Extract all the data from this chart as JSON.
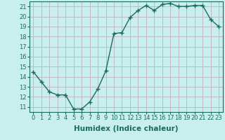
{
  "x": [
    0,
    1,
    2,
    3,
    4,
    5,
    6,
    7,
    8,
    9,
    10,
    11,
    12,
    13,
    14,
    15,
    16,
    17,
    18,
    19,
    20,
    21,
    22,
    23
  ],
  "y": [
    14.5,
    13.5,
    12.5,
    12.2,
    12.2,
    10.8,
    10.8,
    11.5,
    12.8,
    14.6,
    18.3,
    18.4,
    19.9,
    20.6,
    21.1,
    20.6,
    21.2,
    21.3,
    21.0,
    21.0,
    21.1,
    21.1,
    19.7,
    19.0
  ],
  "xlabel": "Humidex (Indice chaleur)",
  "xlim": [
    -0.5,
    23.5
  ],
  "ylim": [
    10.5,
    21.5
  ],
  "yticks": [
    11,
    12,
    13,
    14,
    15,
    16,
    17,
    18,
    19,
    20,
    21
  ],
  "xticks": [
    0,
    1,
    2,
    3,
    4,
    5,
    6,
    7,
    8,
    9,
    10,
    11,
    12,
    13,
    14,
    15,
    16,
    17,
    18,
    19,
    20,
    21,
    22,
    23
  ],
  "line_color": "#1a6b5e",
  "marker": "+",
  "marker_size": 4,
  "bg_color": "#c8eeee",
  "grid_color": "#c0b8c8",
  "tick_label_fontsize": 6,
  "xlabel_fontsize": 7.5,
  "xlabel_fontweight": "bold"
}
